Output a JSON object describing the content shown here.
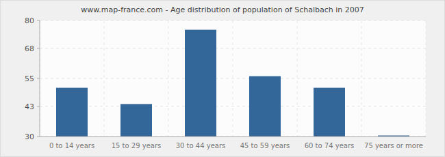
{
  "chart_data": {
    "type": "bar",
    "title": "www.map-france.com - Age distribution of population of Schalbach in 2007",
    "categories": [
      "0 to 14 years",
      "15 to 29 years",
      "30 to 44 years",
      "45 to 59 years",
      "60 to 74 years",
      "75 years or more"
    ],
    "values": [
      51,
      44,
      76,
      56,
      51,
      30
    ],
    "color": "#336699",
    "ylim": [
      30,
      80
    ],
    "yticks": [
      30,
      43,
      55,
      68,
      80
    ],
    "grid": true
  }
}
